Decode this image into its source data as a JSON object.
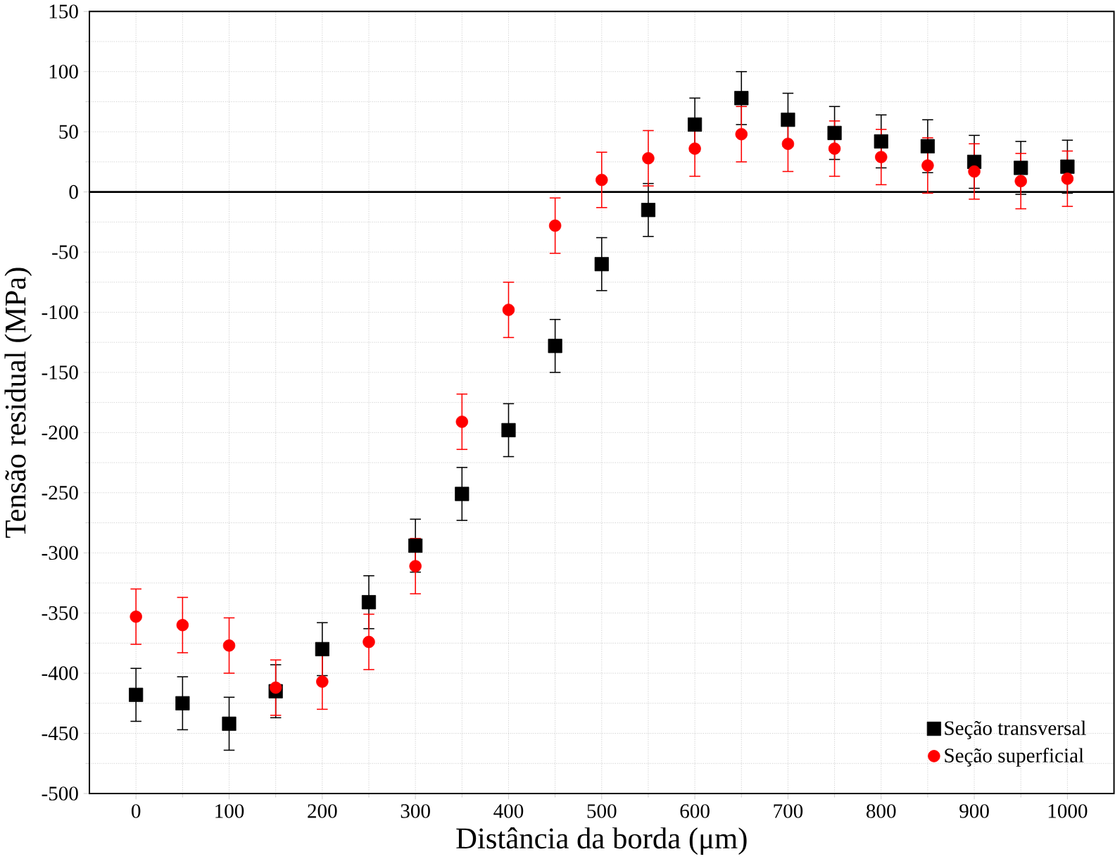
{
  "chart_data": {
    "type": "scatter",
    "xlabel": "Distância da borda (μm)",
    "ylabel": "Tensão residual (MPa)",
    "x": [
      0,
      50,
      100,
      150,
      200,
      250,
      300,
      350,
      400,
      450,
      500,
      550,
      600,
      650,
      700,
      750,
      800,
      850,
      900,
      950,
      1000
    ],
    "series": [
      {
        "name": "Seção transversal",
        "color": "#000000",
        "marker": "square",
        "values": [
          -418,
          -425,
          -442,
          -415,
          -380,
          -341,
          -294,
          -251,
          -198,
          -128,
          -60,
          -15,
          56,
          78,
          60,
          49,
          42,
          38,
          25,
          20,
          21
        ],
        "errors": [
          22,
          22,
          22,
          22,
          22,
          22,
          22,
          22,
          22,
          22,
          22,
          22,
          22,
          22,
          22,
          22,
          22,
          22,
          22,
          22,
          22
        ]
      },
      {
        "name": "Seção superficial",
        "color": "#ff0000",
        "marker": "circle",
        "values": [
          -353,
          -360,
          -377,
          -412,
          -407,
          -374,
          -311,
          -191,
          -98,
          -28,
          10,
          28,
          36,
          48,
          40,
          36,
          29,
          22,
          17,
          9,
          11
        ],
        "errors": [
          23,
          23,
          23,
          23,
          23,
          23,
          23,
          23,
          23,
          23,
          23,
          23,
          23,
          23,
          23,
          23,
          23,
          23,
          23,
          23,
          23
        ]
      }
    ],
    "xlim": [
      -50,
      1050
    ],
    "ylim": [
      -500,
      150
    ],
    "xticks": [
      0,
      100,
      200,
      300,
      400,
      500,
      600,
      700,
      800,
      900,
      1000
    ],
    "yticks": [
      -500,
      -450,
      -400,
      -350,
      -300,
      -250,
      -200,
      -150,
      -100,
      -50,
      0,
      50,
      100,
      150
    ],
    "ref_lines": [
      {
        "axis": "y",
        "value": 0,
        "color": "#000000"
      }
    ],
    "grid": true,
    "legend": "bottom right"
  }
}
